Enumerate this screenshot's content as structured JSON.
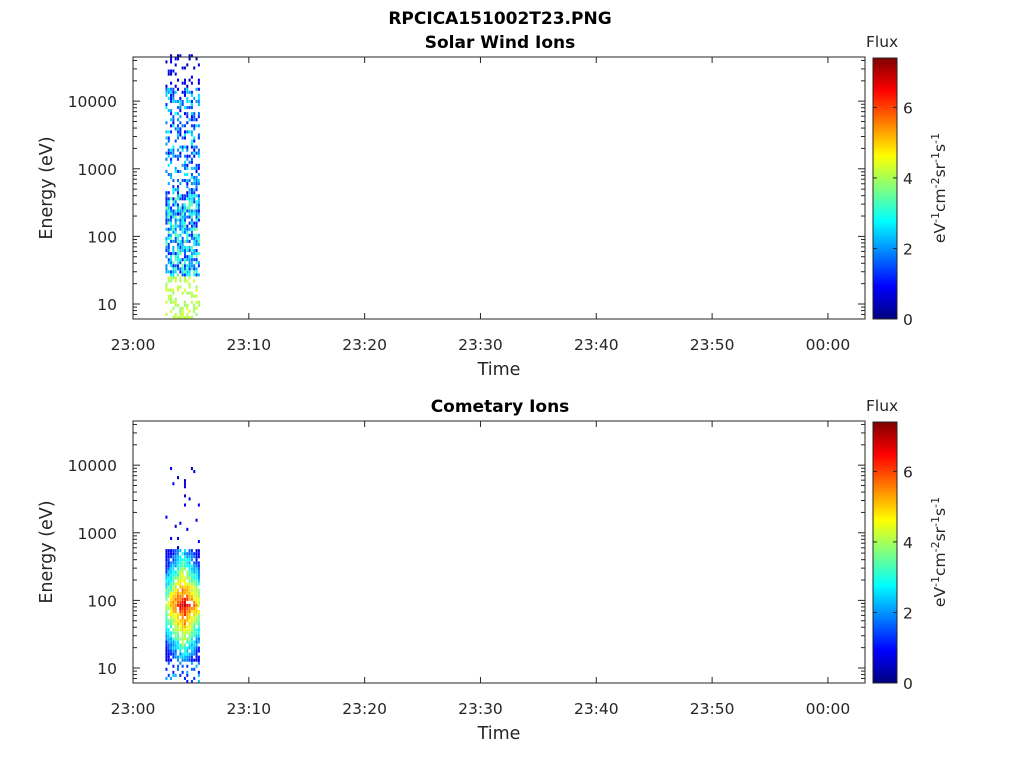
{
  "figure_title": "RPCICA151002T23.PNG",
  "colors": {
    "colormap": [
      "#00007f",
      "#0000ff",
      "#007fff",
      "#00ffff",
      "#7fff7f",
      "#ffff00",
      "#ff7f00",
      "#ff0000",
      "#7f0000"
    ]
  },
  "chart_data": [
    {
      "type": "heatmap",
      "title": "Solar Wind Ions",
      "xlabel": "Time",
      "ylabel": "Energy (eV)",
      "x_tick_labels": [
        "23:00",
        "23:10",
        "23:20",
        "23:30",
        "23:40",
        "23:50",
        "00:00"
      ],
      "x_tick_minutes": [
        0,
        10,
        20,
        30,
        40,
        50,
        60
      ],
      "xlim_minutes": [
        0,
        63.2
      ],
      "y_scale": "log",
      "y_tick_values": [
        10,
        100,
        1000,
        10000
      ],
      "y_tick_labels": [
        "10",
        "100",
        "1000",
        "10000"
      ],
      "ylim": [
        6,
        45000
      ],
      "colorbar": {
        "title": "Flux",
        "range": [
          0,
          7.4
        ],
        "tick_values": [
          0,
          2,
          4,
          6
        ],
        "tick_labels": [
          "0",
          "2",
          "4",
          "6"
        ]
      },
      "data_time_range_minutes": [
        2.8,
        5.8
      ],
      "grid": false
    },
    {
      "type": "heatmap",
      "title": "Cometary Ions",
      "xlabel": "Time",
      "ylabel": "Energy (eV)",
      "x_tick_labels": [
        "23:00",
        "23:10",
        "23:20",
        "23:30",
        "23:40",
        "23:50",
        "00:00"
      ],
      "x_tick_minutes": [
        0,
        10,
        20,
        30,
        40,
        50,
        60
      ],
      "xlim_minutes": [
        0,
        63.2
      ],
      "y_scale": "log",
      "y_tick_values": [
        10,
        100,
        1000,
        10000
      ],
      "y_tick_labels": [
        "10",
        "100",
        "1000",
        "10000"
      ],
      "ylim": [
        6,
        45000
      ],
      "colorbar": {
        "title": "Flux",
        "range": [
          0,
          7.4
        ],
        "tick_values": [
          0,
          2,
          4,
          6
        ],
        "tick_labels": [
          "0",
          "2",
          "4",
          "6"
        ]
      },
      "data_time_range_minutes": [
        2.8,
        5.8
      ],
      "grid": false
    }
  ]
}
